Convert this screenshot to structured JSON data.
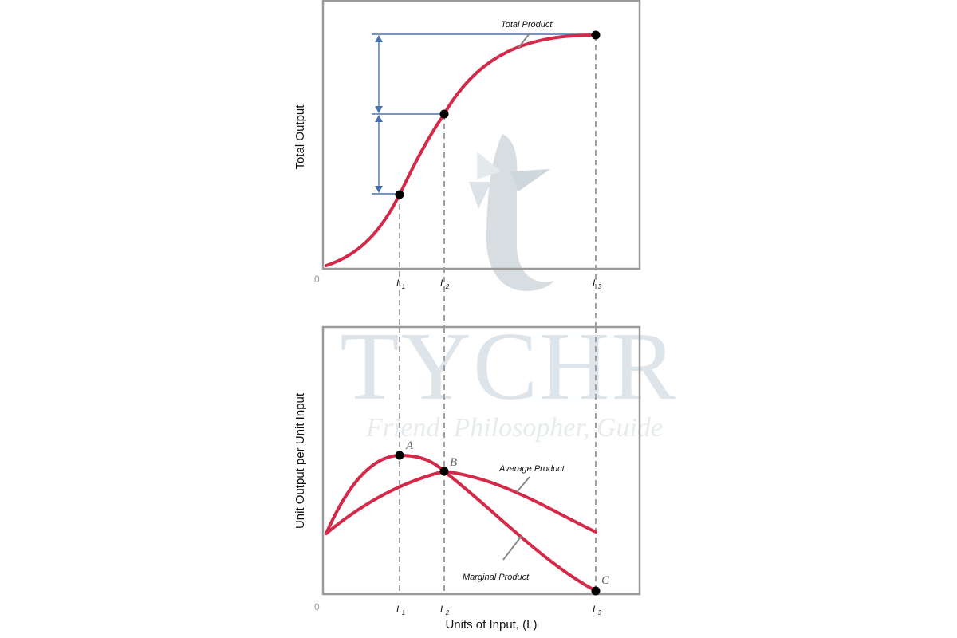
{
  "watermark": {
    "brand": "TYCHR",
    "tagline": "Friend, Philosopher, Guide",
    "logo_icon": "tychr-t-logo-icon"
  },
  "top_panel": {
    "y_axis_title": "Total Output",
    "origin_label": "0",
    "curve_label": "Total Product",
    "x_ticks": [
      {
        "main": "L",
        "sub": "1"
      },
      {
        "main": "L",
        "sub": "2"
      },
      {
        "main": "L",
        "sub": "3"
      }
    ]
  },
  "bottom_panel": {
    "y_axis_title": "Unit Output per Unit Input",
    "x_axis_title": "Units of Input, (L)",
    "origin_label": "0",
    "average_label": "Average Product",
    "marginal_label": "Marginal Product",
    "points": [
      "A",
      "B",
      "C"
    ],
    "x_ticks": [
      {
        "main": "L",
        "sub": "1"
      },
      {
        "main": "L",
        "sub": "2"
      },
      {
        "main": "L",
        "sub": "3"
      }
    ]
  },
  "colors": {
    "curve": "#d42a4a",
    "arrows": "#4a72b0",
    "frame": "#9a9a9a",
    "dashes": "#a0a0a0"
  }
}
